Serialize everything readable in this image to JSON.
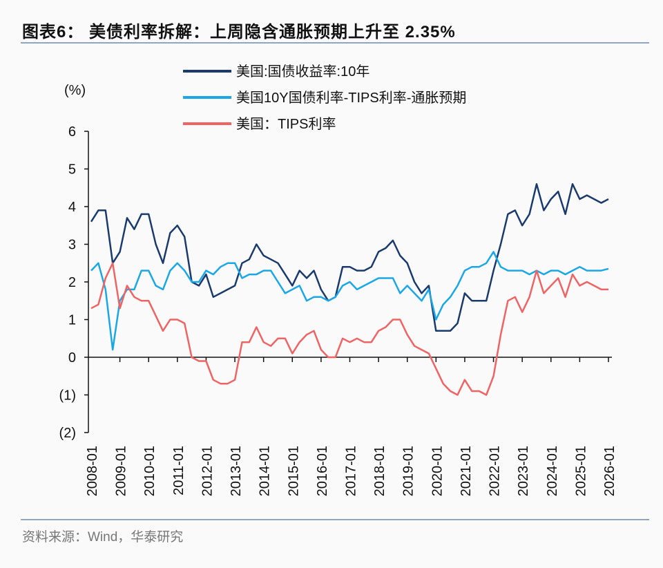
{
  "title": "图表6： 美债利率拆解：上周隐含通胀预期上升至 2.35%",
  "source": "资料来源：Wind，华泰研究",
  "chart_data": {
    "type": "line",
    "title": "图表6： 美债利率拆解：上周隐含通胀预期上升至 2.35%",
    "ylabel": "(%)",
    "ylim": [
      -2,
      6
    ],
    "yticks": [
      6,
      5,
      4,
      3,
      2,
      1,
      0,
      -1,
      -2
    ],
    "ytick_labels": [
      "6",
      "5",
      "4",
      "3",
      "2",
      "1",
      "0",
      "(1)",
      "(2)"
    ],
    "xlim": [
      "2008-01",
      "2026-01"
    ],
    "xtick_labels": [
      "2008-01",
      "2009-01",
      "2010-01",
      "2011-01",
      "2012-01",
      "2013-01",
      "2014-01",
      "2015-01",
      "2016-01",
      "2017-01",
      "2018-01",
      "2019-01",
      "2020-01",
      "2021-01",
      "2022-01",
      "2023-01",
      "2024-01",
      "2025-01",
      "2026-01"
    ],
    "x_frequency": "quarterly from 2008-01",
    "legend_position": "top",
    "grid": false,
    "series": [
      {
        "name": "美国:国债收益率:10年",
        "color": "#1a3a6e",
        "values": [
          3.6,
          3.9,
          3.9,
          2.5,
          2.8,
          3.7,
          3.4,
          3.8,
          3.8,
          3.0,
          2.5,
          3.3,
          3.5,
          3.2,
          2.0,
          1.9,
          2.2,
          1.6,
          1.7,
          1.8,
          1.9,
          2.5,
          2.6,
          3.0,
          2.7,
          2.6,
          2.5,
          2.2,
          1.9,
          2.3,
          2.1,
          2.3,
          1.8,
          1.5,
          1.6,
          2.4,
          2.4,
          2.3,
          2.3,
          2.4,
          2.8,
          2.9,
          3.1,
          2.7,
          2.5,
          2.0,
          1.7,
          1.9,
          0.7,
          0.7,
          0.7,
          0.9,
          1.7,
          1.5,
          1.5,
          1.5,
          2.3,
          3.0,
          3.8,
          3.9,
          3.5,
          3.8,
          4.6,
          3.9,
          4.2,
          4.4,
          3.8,
          4.6,
          4.2,
          4.3,
          4.2,
          4.1,
          4.2
        ]
      },
      {
        "name": "美国10Y国债利率-TIPS利率-通胀预期",
        "color": "#1aa7e6",
        "values": [
          2.3,
          2.5,
          1.8,
          0.2,
          1.5,
          1.8,
          1.8,
          2.3,
          2.3,
          1.9,
          1.8,
          2.3,
          2.5,
          2.3,
          2.0,
          2.0,
          2.3,
          2.2,
          2.4,
          2.5,
          2.5,
          2.1,
          2.2,
          2.2,
          2.3,
          2.3,
          2.0,
          1.7,
          1.8,
          1.9,
          1.5,
          1.6,
          1.6,
          1.5,
          1.6,
          1.9,
          2.0,
          1.8,
          1.9,
          2.0,
          2.1,
          2.1,
          2.1,
          1.7,
          1.9,
          1.7,
          1.5,
          1.8,
          1.0,
          1.4,
          1.6,
          1.9,
          2.3,
          2.4,
          2.4,
          2.5,
          2.8,
          2.4,
          2.3,
          2.3,
          2.3,
          2.2,
          2.3,
          2.2,
          2.3,
          2.3,
          2.2,
          2.3,
          2.4,
          2.3,
          2.3,
          2.3,
          2.35
        ]
      },
      {
        "name": "美国：TIPS利率",
        "color": "#f06363",
        "values": [
          1.3,
          1.4,
          2.1,
          2.5,
          1.3,
          1.9,
          1.6,
          1.5,
          1.5,
          1.1,
          0.7,
          1.0,
          1.0,
          0.9,
          0.0,
          -0.1,
          -0.1,
          -0.6,
          -0.7,
          -0.7,
          -0.6,
          0.4,
          0.4,
          0.8,
          0.4,
          0.3,
          0.5,
          0.5,
          0.1,
          0.4,
          0.6,
          0.7,
          0.2,
          0.0,
          0.0,
          0.5,
          0.4,
          0.5,
          0.4,
          0.4,
          0.7,
          0.8,
          1.0,
          1.0,
          0.6,
          0.3,
          0.2,
          0.1,
          -0.3,
          -0.7,
          -0.9,
          -1.0,
          -0.6,
          -0.9,
          -0.9,
          -1.0,
          -0.5,
          0.6,
          1.5,
          1.6,
          1.2,
          1.6,
          2.3,
          1.7,
          1.9,
          2.1,
          1.6,
          2.2,
          1.9,
          2.0,
          1.9,
          1.8,
          1.8
        ]
      }
    ]
  }
}
